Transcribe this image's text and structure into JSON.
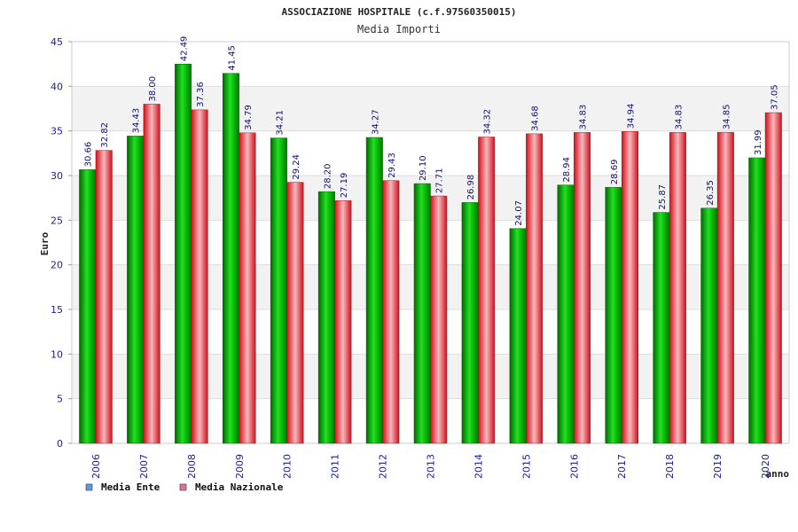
{
  "chart_data": {
    "type": "bar",
    "title": "ASSOCIAZIONE HOSPITALE (c.f.97560350015)",
    "subtitle": "Media Importi",
    "xlabel": "anno",
    "ylabel": "Euro",
    "ylim": [
      0,
      45
    ],
    "yticks": [
      "0",
      "5",
      "10",
      "15",
      "20",
      "25",
      "30",
      "35",
      "40",
      "45"
    ],
    "grid": true,
    "legend_position": "bottom-left",
    "categories": [
      "2006",
      "2007",
      "2008",
      "2009",
      "2010",
      "2011",
      "2012",
      "2013",
      "2014",
      "2015",
      "2016",
      "2017",
      "2018",
      "2019",
      "2020"
    ],
    "series": [
      {
        "name": "Media Ente",
        "color": "#00c000",
        "legend_color": "#5a9ae6",
        "values": [
          30.66,
          34.43,
          42.49,
          41.45,
          34.21,
          28.2,
          34.27,
          29.1,
          26.98,
          24.07,
          28.94,
          28.69,
          25.87,
          26.35,
          31.99
        ],
        "labels": [
          "30.66",
          "34.43",
          "42.49",
          "41.45",
          "34.21",
          "28.20",
          "34.27",
          "29.10",
          "26.98",
          "24.07",
          "28.94",
          "28.69",
          "25.87",
          "26.35",
          "31.99"
        ]
      },
      {
        "name": "Media Nazionale",
        "color": "#e8202a",
        "legend_color": "#e070a0",
        "values": [
          32.82,
          38.0,
          37.36,
          34.79,
          29.24,
          27.19,
          29.43,
          27.71,
          34.32,
          34.68,
          34.83,
          34.94,
          34.83,
          34.85,
          37.05
        ],
        "labels": [
          "32.82",
          "38.00",
          "37.36",
          "34.79",
          "29.24",
          "27.19",
          "29.43",
          "27.71",
          "34.32",
          "34.68",
          "34.83",
          "34.94",
          "34.83",
          "34.85",
          "37.05"
        ]
      }
    ]
  }
}
